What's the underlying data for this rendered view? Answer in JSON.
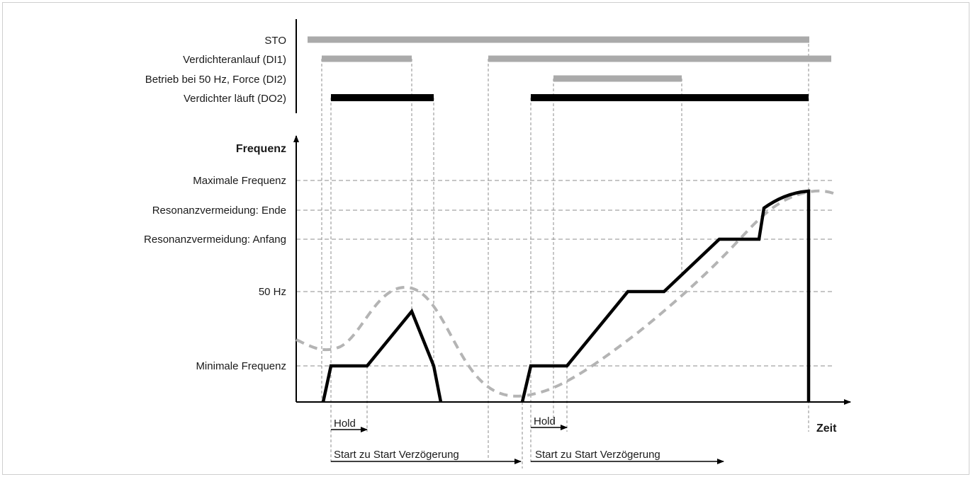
{
  "signals": [
    {
      "id": "sto",
      "label": "STO"
    },
    {
      "id": "di1",
      "label": "Verdichteranlauf (DI1)"
    },
    {
      "id": "di2",
      "label": "Betrieb bei 50 Hz, Force (DI2)"
    },
    {
      "id": "do2",
      "label": "Verdichter läuft (DO2)"
    }
  ],
  "axis": {
    "y_label": "Frequenz",
    "x_label": "Zeit"
  },
  "levels": [
    {
      "id": "fmax",
      "label": "Maximale Frequenz"
    },
    {
      "id": "res_end",
      "label": "Resonanzvermeidung: Ende"
    },
    {
      "id": "res_start",
      "label": "Resonanzvermeidung: Anfang"
    },
    {
      "id": "f50",
      "label": "50 Hz"
    },
    {
      "id": "fmin",
      "label": "Minimale Frequenz"
    }
  ],
  "annotations": {
    "hold_1": "Hold",
    "hold_2": "Hold",
    "delay_1": "Start zu Start Verzögerung",
    "delay_2": "Start zu Start Verzögerung"
  },
  "colors": {
    "active_signal": "#aaaaaa",
    "output_signal": "#000000",
    "frequency_output": "#000000",
    "frequency_demand": "#b4b4b4",
    "grid": "#8c8c8c"
  }
}
